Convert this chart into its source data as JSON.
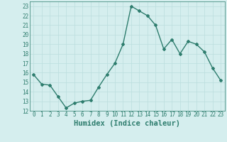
{
  "x": [
    0,
    1,
    2,
    3,
    4,
    5,
    6,
    7,
    8,
    9,
    10,
    11,
    12,
    13,
    14,
    15,
    16,
    17,
    18,
    19,
    20,
    21,
    22,
    23
  ],
  "y": [
    15.8,
    14.8,
    14.7,
    13.5,
    12.3,
    12.8,
    13.0,
    13.1,
    14.5,
    15.8,
    17.0,
    19.0,
    23.0,
    22.5,
    22.0,
    21.0,
    18.5,
    19.5,
    18.0,
    19.3,
    19.0,
    18.2,
    16.5,
    15.2
  ],
  "line_color": "#2E7D6E",
  "marker": "D",
  "marker_size": 2.0,
  "bg_color": "#D5EEEE",
  "grid_color": "#BBDDDD",
  "xlabel": "Humidex (Indice chaleur)",
  "xlim": [
    -0.5,
    23.5
  ],
  "ylim": [
    12,
    23.5
  ],
  "yticks": [
    12,
    13,
    14,
    15,
    16,
    17,
    18,
    19,
    20,
    21,
    22,
    23
  ],
  "xticks": [
    0,
    1,
    2,
    3,
    4,
    5,
    6,
    7,
    8,
    9,
    10,
    11,
    12,
    13,
    14,
    15,
    16,
    17,
    18,
    19,
    20,
    21,
    22,
    23
  ],
  "linewidth": 1.0,
  "xlabel_fontsize": 7.5,
  "tick_fontsize": 5.5
}
